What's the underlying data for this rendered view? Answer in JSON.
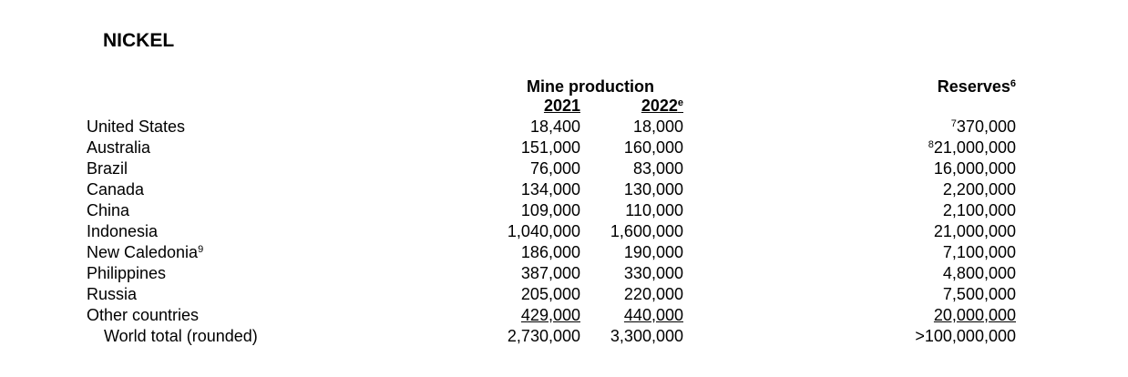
{
  "title": "NICKEL",
  "table": {
    "group_header": "Mine production",
    "columns": [
      {
        "label": "2021"
      },
      {
        "label": "2022",
        "note": "e"
      }
    ],
    "reserves_header": {
      "label": "Reserves",
      "note": "6"
    },
    "rows": [
      {
        "name": "United States",
        "values": [
          "18,400",
          "18,000"
        ],
        "reserves_note": "7",
        "reserves": "370,000"
      },
      {
        "name": "Australia",
        "values": [
          "151,000",
          "160,000"
        ],
        "reserves_note": "8",
        "reserves": "21,000,000"
      },
      {
        "name": "Brazil",
        "values": [
          "76,000",
          "83,000"
        ],
        "reserves": "16,000,000"
      },
      {
        "name": "Canada",
        "values": [
          "134,000",
          "130,000"
        ],
        "reserves": "2,200,000"
      },
      {
        "name": "China",
        "values": [
          "109,000",
          "110,000"
        ],
        "reserves": "2,100,000"
      },
      {
        "name": "Indonesia",
        "values": [
          "1,040,000",
          "1,600,000"
        ],
        "reserves": "21,000,000"
      },
      {
        "name": "New Caledonia",
        "name_note": "9",
        "values": [
          "186,000",
          "190,000"
        ],
        "reserves": "7,100,000"
      },
      {
        "name": "Philippines",
        "values": [
          "387,000",
          "330,000"
        ],
        "reserves": "4,800,000"
      },
      {
        "name": "Russia",
        "values": [
          "205,000",
          "220,000"
        ],
        "reserves": "7,500,000"
      },
      {
        "name": "Other countries",
        "values": [
          "429,000",
          "440,000"
        ],
        "reserves": "20,000,000"
      }
    ],
    "total": {
      "name": "World total (rounded)",
      "values": [
        "2,730,000",
        "3,300,000"
      ],
      "reserves": ">100,000,000"
    }
  }
}
